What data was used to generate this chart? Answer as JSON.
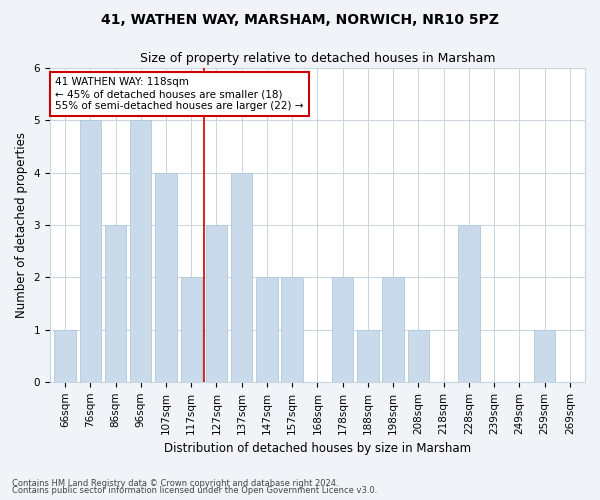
{
  "title_line1": "41, WATHEN WAY, MARSHAM, NORWICH, NR10 5PZ",
  "title_line2": "Size of property relative to detached houses in Marsham",
  "xlabel": "Distribution of detached houses by size in Marsham",
  "ylabel": "Number of detached properties",
  "categories": [
    "66sqm",
    "76sqm",
    "86sqm",
    "96sqm",
    "107sqm",
    "117sqm",
    "127sqm",
    "137sqm",
    "147sqm",
    "157sqm",
    "168sqm",
    "178sqm",
    "188sqm",
    "198sqm",
    "208sqm",
    "218sqm",
    "228sqm",
    "239sqm",
    "249sqm",
    "259sqm",
    "269sqm"
  ],
  "values": [
    1,
    5,
    3,
    5,
    4,
    2,
    3,
    4,
    2,
    2,
    0,
    2,
    1,
    2,
    1,
    0,
    3,
    0,
    0,
    1,
    0
  ],
  "bar_color": "#c9daea",
  "bar_edge_color": "#b0c8dc",
  "vline_x": 5.5,
  "vline_color": "#cc0000",
  "annotation_text_line1": "41 WATHEN WAY: 118sqm",
  "annotation_text_line2": "← 45% of detached houses are smaller (18)",
  "annotation_text_line3": "55% of semi-detached houses are larger (22) →",
  "annotation_box_color": "#cc0000",
  "ylim": [
    0,
    6
  ],
  "yticks": [
    0,
    1,
    2,
    3,
    4,
    5,
    6
  ],
  "footnote_line1": "Contains HM Land Registry data © Crown copyright and database right 2024.",
  "footnote_line2": "Contains public sector information licensed under the Open Government Licence v3.0.",
  "background_color": "#f0f4f8",
  "plot_background_color": "#ffffff",
  "title_fontsize": 10,
  "subtitle_fontsize": 9,
  "axis_label_fontsize": 8.5,
  "tick_fontsize": 7.5,
  "annotation_fontsize": 7.5,
  "footnote_fontsize": 6
}
